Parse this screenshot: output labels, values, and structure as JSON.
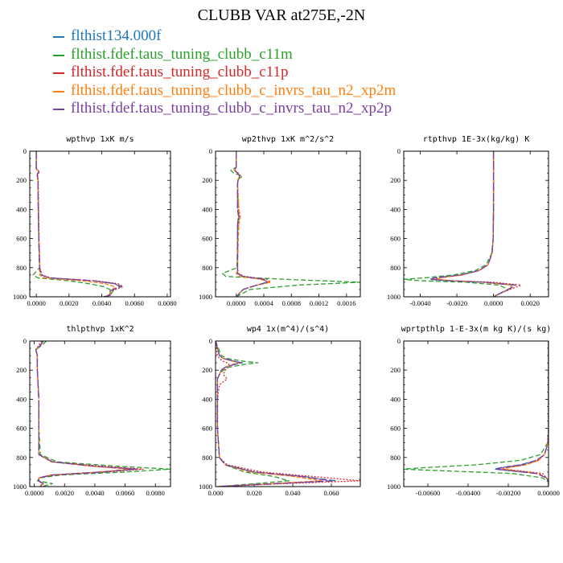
{
  "title": "CLUBB VAR at275E,-2N",
  "legend": [
    {
      "label": "flthist134.000f",
      "color": "#1f77b4"
    },
    {
      "label": "flthist.fdef.taus_tuning_clubb_c11m",
      "color": "#2ca02c"
    },
    {
      "label": "flthist.fdef.taus_tuning_clubb_c11p",
      "color": "#d62728"
    },
    {
      "label": "flthist.fdef.taus_tuning_clubb_c_invrs_tau_n2_xp2m",
      "color": "#ff7f0e"
    },
    {
      "label": "flthist.fdef.taus_tuning_clubb_c_invrs_tau_n2_xp2p",
      "color": "#7b3fa0"
    }
  ],
  "chart_data": [
    {
      "type": "line",
      "title": "wpthvp   1xK m/s",
      "xlim": [
        -0.0004,
        0.0082
      ],
      "xticks": [
        0.0,
        0.002,
        0.004,
        0.006,
        0.008
      ],
      "xticklabels": [
        "0.0000",
        "0.0020",
        "0.0040",
        "0.0060",
        "0.0080"
      ],
      "ylim": [
        1000,
        0
      ],
      "yticks": [
        0,
        200,
        400,
        600,
        800,
        1000
      ],
      "y": [
        0,
        120,
        140,
        160,
        200,
        400,
        600,
        800,
        850,
        870,
        890,
        910,
        930,
        960,
        990,
        1000
      ],
      "series": [
        {
          "x": [
            0,
            0,
            0.00015,
            5e-05,
            0.0001,
            0.00012,
            0.00015,
            0.0002,
            0.0003,
            0.0008,
            0.0035,
            0.0048,
            0.0052,
            0.0045,
            0.0045,
            0.0041
          ]
        },
        {
          "x": [
            0,
            0,
            0.00015,
            5e-05,
            0.0001,
            0.00012,
            0.00015,
            0.0002,
            -0.0002,
            0.0001,
            0.002,
            0.0032,
            0.0041,
            0.0047,
            0.0045,
            0.0042
          ]
        },
        {
          "x": [
            0,
            0,
            0.0002,
            8e-05,
            0.00012,
            0.00014,
            0.00017,
            0.00022,
            0.00035,
            0.0009,
            0.0036,
            0.005,
            0.0053,
            0.0046,
            0.0044,
            0.0042
          ]
        },
        {
          "x": [
            0,
            0,
            0.00015,
            5e-05,
            0.0001,
            0.00012,
            0.00015,
            0.0002,
            0.0002,
            0.0005,
            0.0028,
            0.0042,
            0.0048,
            0.0046,
            0.0045,
            0.0041
          ]
        },
        {
          "x": [
            0,
            0,
            0.00015,
            5e-05,
            0.0001,
            0.00012,
            0.00015,
            0.0002,
            0.0003,
            0.0008,
            0.0035,
            0.0048,
            0.0051,
            0.0045,
            0.0045,
            0.0041
          ]
        }
      ]
    },
    {
      "type": "line",
      "title": "wp2thvp   1xK m^2/s^2",
      "xlim": [
        -0.0003,
        0.0018
      ],
      "xticks": [
        0.0,
        0.0004,
        0.0008,
        0.0012,
        0.0016
      ],
      "xticklabels": [
        "0.0000",
        "0.0004",
        "0.0008",
        "0.0012",
        "0.0016"
      ],
      "ylim": [
        1000,
        0
      ],
      "yticks": [
        0,
        200,
        400,
        600,
        800,
        1000
      ],
      "y": [
        0,
        110,
        130,
        150,
        170,
        190,
        220,
        400,
        450,
        500,
        600,
        800,
        840,
        860,
        880,
        900,
        920,
        950,
        1000
      ],
      "series": [
        {
          "x": [
            0,
            0,
            -3e-05,
            2e-05,
            5e-05,
            3e-05,
            2e-05,
            2e-05,
            4e-05,
            2e-05,
            2e-05,
            2e-05,
            2e-05,
            0.0001,
            0.0004,
            0.00045,
            0.0003,
            0.0001,
            0
          ]
        },
        {
          "x": [
            0,
            0,
            -8e-05,
            -4e-05,
            9e-05,
            4e-05,
            2e-05,
            2e-05,
            3e-05,
            2e-05,
            2e-05,
            1e-05,
            -0.0002,
            -0.00015,
            0.0007,
            0.0018,
            0.0009,
            0.0002,
            0
          ]
        },
        {
          "x": [
            0,
            0,
            -2e-05,
            3e-05,
            6e-05,
            3e-05,
            2e-05,
            3e-05,
            5e-05,
            3e-05,
            2e-05,
            2e-05,
            3e-05,
            0.00012,
            0.00045,
            0.0005,
            0.0003,
            0.0001,
            0
          ]
        },
        {
          "x": [
            0,
            0,
            -3e-05,
            2e-05,
            5e-05,
            3e-05,
            2e-05,
            4e-05,
            6e-05,
            4e-05,
            3e-05,
            2e-05,
            0,
            5e-05,
            0.00035,
            0.0005,
            0.0003,
            0.0001,
            0
          ]
        },
        {
          "x": [
            0,
            0,
            -3e-05,
            2e-05,
            5e-05,
            3e-05,
            2e-05,
            2e-05,
            4e-05,
            2e-05,
            2e-05,
            2e-05,
            2e-05,
            0.0001,
            0.0004,
            0.00045,
            0.0003,
            0.0001,
            0
          ]
        }
      ]
    },
    {
      "type": "line",
      "title": "rtpthvp   1E-3x(kg/kg) K",
      "xlim": [
        -0.0049,
        0.003
      ],
      "xticks": [
        -0.004,
        -0.002,
        0.0,
        0.002
      ],
      "xticklabels": [
        "-0.0040",
        "-0.0020",
        "0.0000",
        "0.0020"
      ],
      "ylim": [
        1000,
        0
      ],
      "yticks": [
        0,
        200,
        400,
        600,
        800,
        1000
      ],
      "y": [
        0,
        200,
        400,
        600,
        700,
        780,
        820,
        850,
        870,
        880,
        890,
        900,
        920,
        950,
        980,
        1000
      ],
      "series": [
        {
          "x": [
            0,
            0,
            0,
            -2e-05,
            -8e-05,
            -0.0003,
            -0.0008,
            -0.0018,
            -0.0032,
            -0.0035,
            -0.0025,
            -0.0005,
            0.0012,
            0.0008,
            0.0003,
            0
          ]
        },
        {
          "x": [
            0,
            0,
            0,
            -2e-05,
            -0.0001,
            -0.0004,
            -0.001,
            -0.0022,
            -0.0038,
            -0.0049,
            -0.004,
            -0.0015,
            0.0003,
            0.0008,
            0.0003,
            0
          ]
        },
        {
          "x": [
            0,
            0,
            0,
            -2e-05,
            -8e-05,
            -0.0003,
            -0.0008,
            -0.0017,
            -0.003,
            -0.0033,
            -0.0022,
            0,
            0.0015,
            0.0009,
            0.0003,
            0
          ]
        },
        {
          "x": [
            0,
            0,
            0,
            -2e-05,
            -8e-05,
            -0.0003,
            -0.0008,
            -0.0017,
            -0.0029,
            -0.0031,
            -0.0022,
            -0.0006,
            0.001,
            0.0008,
            0.0003,
            0
          ]
        },
        {
          "x": [
            0,
            0,
            0,
            -2e-05,
            -8e-05,
            -0.0003,
            -0.0008,
            -0.0018,
            -0.0032,
            -0.0034,
            -0.0024,
            -0.0005,
            0.0012,
            0.0008,
            0.0003,
            0
          ]
        }
      ]
    },
    {
      "type": "line",
      "title": "thlpthvp   1xK^2",
      "xlim": [
        -0.0003,
        0.009
      ],
      "xticks": [
        0.0,
        0.002,
        0.004,
        0.006,
        0.008
      ],
      "xticklabels": [
        "0.0000",
        "0.0020",
        "0.0040",
        "0.0060",
        "0.0080"
      ],
      "ylim": [
        1000,
        0
      ],
      "yticks": [
        0,
        200,
        400,
        600,
        800,
        1000
      ],
      "y": [
        0,
        30,
        60,
        100,
        200,
        400,
        600,
        780,
        830,
        860,
        880,
        900,
        920,
        940,
        960,
        980,
        1000
      ],
      "series": [
        {
          "x": [
            0.0006,
            0.0004,
            0.0001,
            0.0002,
            0.0002,
            0.0003,
            0.0003,
            0.0003,
            0.0012,
            0.004,
            0.0068,
            0.0045,
            0.0012,
            0.0003,
            0.0003,
            0.0006,
            0.0004
          ]
        },
        {
          "x": [
            0.0008,
            0.0005,
            0.0001,
            0.0002,
            0.0002,
            0.0003,
            0.0003,
            0.0004,
            0.0015,
            0.0055,
            0.009,
            0.006,
            0.0018,
            0.0004,
            0.0002,
            0.0012,
            0.0005
          ]
        },
        {
          "x": [
            0.0005,
            0.0003,
            0.0001,
            0.0002,
            0.0002,
            0.0003,
            0.0003,
            0.0003,
            0.0012,
            0.0045,
            0.0072,
            0.0048,
            0.0014,
            0.0003,
            0.0003,
            0.0005,
            0.0004
          ]
        },
        {
          "x": [
            0.0006,
            0.0004,
            0.0001,
            0.0002,
            0.0002,
            0.0003,
            0.0003,
            0.0003,
            0.0011,
            0.0038,
            0.0063,
            0.0042,
            0.0011,
            0.0003,
            0.0003,
            0.0006,
            0.0004
          ]
        },
        {
          "x": [
            0.0006,
            0.0004,
            0.0001,
            0.0002,
            0.0002,
            0.0003,
            0.0003,
            0.0003,
            0.0012,
            0.004,
            0.0067,
            0.0044,
            0.0012,
            0.0003,
            0.0003,
            0.0006,
            0.0004
          ]
        }
      ]
    },
    {
      "type": "line",
      "title": "wp4   1x(m^4)/(s^4)",
      "xlim": [
        0.0,
        0.075
      ],
      "xticks": [
        0.0,
        0.02,
        0.04,
        0.06
      ],
      "xticklabels": [
        "0.000",
        "0.020",
        "0.040",
        "0.060"
      ],
      "ylim": [
        1000,
        0
      ],
      "yticks": [
        0,
        200,
        400,
        600,
        800,
        1000
      ],
      "y": [
        0,
        100,
        120,
        140,
        150,
        160,
        180,
        200,
        230,
        260,
        300,
        400,
        600,
        800,
        850,
        900,
        930,
        960,
        980,
        1000
      ],
      "series": [
        {
          "x": [
            0,
            0.002,
            0.004,
            0.01,
            0.014,
            0.01,
            0.005,
            0.003,
            0.002,
            0.001,
            0.001,
            0.001,
            0.001,
            0.002,
            0.005,
            0.02,
            0.045,
            0.062,
            0.03,
            0.001
          ]
        },
        {
          "x": [
            0,
            0.003,
            0.006,
            0.015,
            0.022,
            0.015,
            0.007,
            0.004,
            0.002,
            0.001,
            0.001,
            0.001,
            0.001,
            0.002,
            0.005,
            0.015,
            0.03,
            0.038,
            0.02,
            0.001
          ]
        },
        {
          "x": [
            0,
            0.001,
            0.002,
            0.004,
            0.006,
            0.007,
            0.006,
            0.005,
            0.004,
            0.006,
            0.002,
            0.001,
            0.001,
            0.002,
            0.006,
            0.024,
            0.05,
            0.075,
            0.035,
            0.001
          ]
        },
        {
          "x": [
            0,
            0.002,
            0.004,
            0.009,
            0.012,
            0.009,
            0.005,
            0.003,
            0.002,
            0.001,
            0.001,
            0.001,
            0.001,
            0.002,
            0.005,
            0.018,
            0.04,
            0.055,
            0.028,
            0.001
          ]
        },
        {
          "x": [
            0,
            0.002,
            0.004,
            0.01,
            0.013,
            0.01,
            0.005,
            0.003,
            0.002,
            0.001,
            0.001,
            0.001,
            0.001,
            0.002,
            0.005,
            0.02,
            0.044,
            0.06,
            0.03,
            0.001
          ]
        }
      ]
    },
    {
      "type": "line",
      "title": "wprtpthlp   1-E-3x(m kg K)/(s kg)",
      "xlim": [
        -0.0072,
        0.0
      ],
      "xticks": [
        -0.006,
        -0.004,
        -0.002,
        0.0
      ],
      "xticklabels": [
        "-0.00600",
        "-0.00400",
        "-0.00200",
        "0.00000"
      ],
      "ylim": [
        1000,
        0
      ],
      "yticks": [
        0,
        200,
        400,
        600,
        800,
        1000
      ],
      "y": [
        0,
        200,
        400,
        600,
        700,
        780,
        820,
        850,
        870,
        880,
        890,
        910,
        940,
        970,
        1000
      ],
      "series": [
        {
          "x": [
            0,
            0,
            0,
            0,
            -3e-05,
            -0.0002,
            -0.0006,
            -0.0014,
            -0.0024,
            -0.0027,
            -0.002,
            -0.0006,
            -0.0001,
            0,
            0
          ]
        },
        {
          "x": [
            0,
            0,
            0,
            0,
            -5e-05,
            -0.0004,
            -0.0014,
            -0.0036,
            -0.0062,
            -0.0072,
            -0.0055,
            -0.0018,
            -0.0003,
            0,
            0
          ]
        },
        {
          "x": [
            0,
            0,
            0,
            0,
            -3e-05,
            -0.0002,
            -0.0005,
            -0.0012,
            -0.0021,
            -0.0022,
            -0.0015,
            -0.0003,
            -0.0001,
            0,
            0
          ]
        },
        {
          "x": [
            0,
            0,
            0,
            0,
            -3e-05,
            -0.0002,
            -0.0005,
            -0.0011,
            -0.002,
            -0.0023,
            -0.0017,
            -0.0005,
            -0.0001,
            0,
            0
          ]
        },
        {
          "x": [
            0,
            0,
            0,
            0,
            -3e-05,
            -0.0002,
            -0.0006,
            -0.0013,
            -0.0023,
            -0.0026,
            -0.0019,
            -0.0006,
            -0.0001,
            0,
            0
          ]
        }
      ]
    }
  ]
}
